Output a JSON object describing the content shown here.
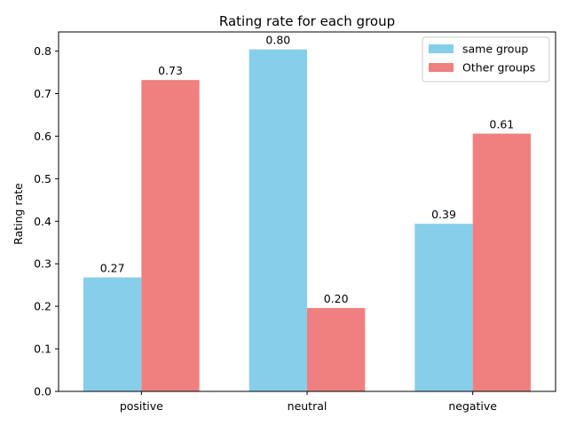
{
  "chart_data": {
    "type": "bar",
    "title": "Rating rate for each group",
    "xlabel": "",
    "ylabel": "Rating rate",
    "categories": [
      "positive",
      "neutral",
      "negative"
    ],
    "series": [
      {
        "name": "same group",
        "color": "#87ceeb",
        "values": [
          0.268,
          0.804,
          0.394
        ],
        "labels": [
          "0.27",
          "0.80",
          "0.39"
        ]
      },
      {
        "name": "Other groups",
        "color": "#f08080",
        "values": [
          0.732,
          0.196,
          0.606
        ],
        "labels": [
          "0.73",
          "0.20",
          "0.61"
        ]
      }
    ],
    "ylim": [
      0,
      0.845
    ],
    "yticks": [
      "0.0",
      "0.1",
      "0.2",
      "0.3",
      "0.4",
      "0.5",
      "0.6",
      "0.7",
      "0.8"
    ],
    "grid": false,
    "legend_position": "top-right"
  }
}
